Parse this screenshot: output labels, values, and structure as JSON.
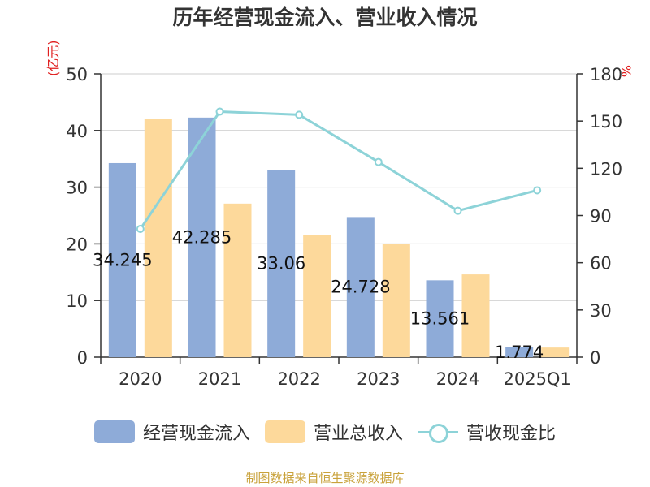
{
  "title": "历年经营现金流入、营业收入情况",
  "source": "制图数据来自恒生聚源数据库",
  "legend": {
    "cash_label": "经营现金流入",
    "revenue_label": "营业总收入",
    "ratio_label": "营收现金比"
  },
  "colors": {
    "cash": "#8eabd8",
    "revenue": "#fdd99b",
    "ratio": "#8dd3d8",
    "axis_unit": "#e02020",
    "source": "#c9a23b"
  },
  "chart_data": {
    "type": "bar",
    "categories": [
      "2020",
      "2021",
      "2022",
      "2023",
      "2024",
      "2025Q1"
    ],
    "series": [
      {
        "name": "经营现金流入",
        "type": "bar",
        "axis": "left",
        "values": [
          34.245,
          42.285,
          33.06,
          24.728,
          13.561,
          1.774
        ],
        "value_labels": [
          "34.245",
          "42.285",
          "33.06",
          "24.728",
          "13.561",
          "1.774"
        ]
      },
      {
        "name": "营业总收入",
        "type": "bar",
        "axis": "left",
        "values": [
          42.0,
          27.1,
          21.5,
          20.0,
          14.6,
          1.7
        ]
      },
      {
        "name": "营收现金比",
        "type": "line",
        "axis": "right",
        "values": [
          81.5,
          156,
          154,
          124,
          93,
          106
        ]
      }
    ],
    "left_axis": {
      "label": "(亿元)",
      "ylim": [
        0,
        50
      ],
      "ticks": [
        0,
        10,
        20,
        30,
        40,
        50
      ]
    },
    "right_axis": {
      "label": "%",
      "ylim": [
        0,
        180
      ],
      "ticks": [
        0,
        30,
        60,
        90,
        120,
        150,
        180
      ]
    },
    "grid": true,
    "legend_position": "bottom"
  }
}
